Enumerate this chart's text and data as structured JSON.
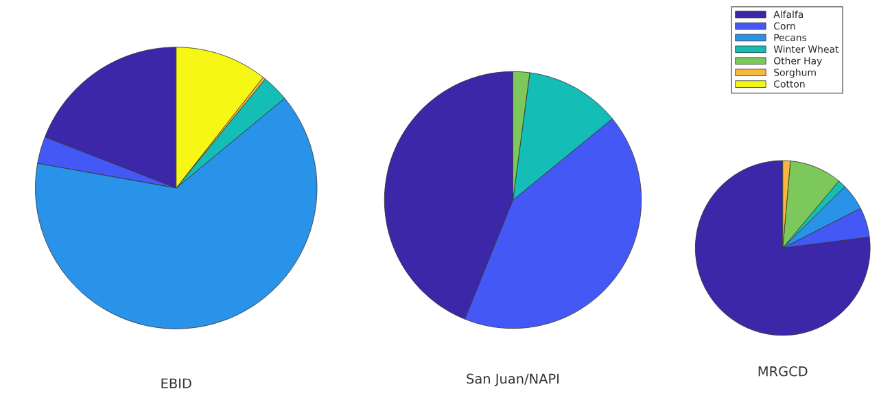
{
  "chart_data": [
    {
      "type": "pie",
      "xlabel": "EBID",
      "categories": [
        null,
        null,
        null,
        null,
        null,
        null,
        null
      ],
      "values": [
        19.1,
        3.1,
        63.8,
        3.1,
        null,
        0.3,
        10.6
      ],
      "colors": [
        "#3c27a8",
        "#4458f5",
        "#2893e8",
        "#14bdb5",
        "#7cc85a",
        "#fbb63c",
        "#f7f716"
      ]
    },
    {
      "type": "pie",
      "xlabel": "San Juan/NAPI",
      "categories": [
        null,
        null,
        null,
        null,
        null,
        null,
        null
      ],
      "values": [
        43.9,
        42.0,
        null,
        12.0,
        2.1,
        null,
        null
      ],
      "colors": [
        "#3c27a8",
        "#4458f5",
        "#2893e8",
        "#14bdb5",
        "#7cc85a",
        "#fbb63c",
        "#f7f716"
      ]
    },
    {
      "type": "pie",
      "xlabel": "MRGCD",
      "categories": [
        "Alfalfa",
        "Corn",
        "Pecans",
        "Winter Wheat",
        "Other Hay",
        "Sorghum",
        "Cotton"
      ],
      "values": [
        77.0,
        5.5,
        4.9,
        1.5,
        9.7,
        1.4,
        null
      ],
      "colors": [
        "#3c27a8",
        "#4458f5",
        "#2893e8",
        "#14bdb5",
        "#7cc85a",
        "#fbb63c",
        "#f7f716"
      ],
      "legend": "top right"
    }
  ]
}
